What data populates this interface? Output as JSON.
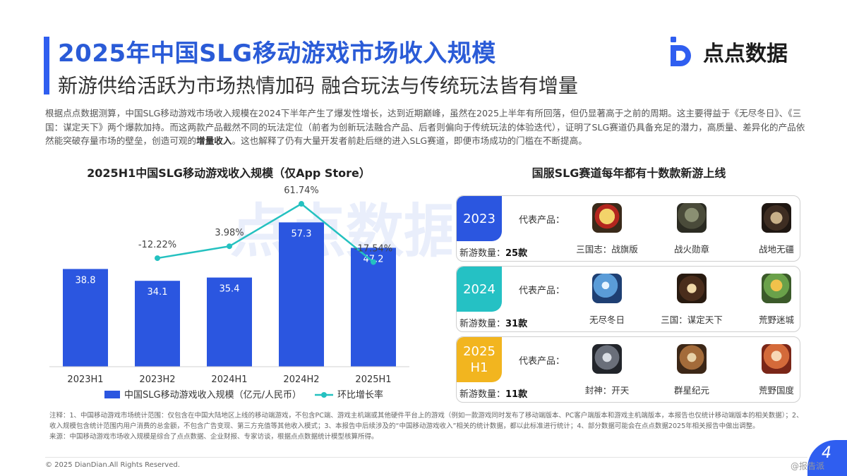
{
  "header": {
    "title": "2025年中国SLG移动游戏市场收入规模",
    "subtitle": "新游供给活跃为市场热情加码 融合玩法与传统玩法皆有增量",
    "logo_text": "点点数据"
  },
  "intro": {
    "part1": "根据点点数据测算，中国SLG移动游戏市场收入规模在2024下半年产生了爆发性增长，达到近期巅峰，虽然在2025上半年有所回落，但仍显著高于之前的周期。这主要得益于《无尽冬日》、《三国：谋定天下》两个爆款加持。而这两款产品截然不同的玩法定位（前者为创新玩法融合产品、后者则偏向于传统玩法的体验迭代），证明了SLG赛道仍具备充足的潜力，高质量、差异化的产品依然能突破存量市场的壁垒，创造可观的",
    "bold": "增量收入",
    "part2": "。这也解释了仍有大量开发者前赴后继的进入SLG赛道，即便市场成功的门槛在不断提高。"
  },
  "chart_data": {
    "type": "bar",
    "title": "2025H1中国SLG移动游戏收入规模（仅App Store）",
    "categories": [
      "2023H1",
      "2023H2",
      "2024H1",
      "2024H2",
      "2025H1"
    ],
    "series": [
      {
        "name": "中国SLG移动游戏收入规模（亿元/人民币）",
        "type": "bar",
        "values": [
          38.8,
          34.1,
          35.4,
          57.3,
          47.2
        ],
        "labels": [
          "38.8",
          "34.1",
          "35.4",
          "57.3",
          "47.2"
        ]
      },
      {
        "name": "环比增长率",
        "type": "line",
        "values": [
          null,
          -12.22,
          3.98,
          61.74,
          -17.54
        ],
        "labels": [
          "",
          "-12.22%",
          "3.98%",
          "61.74%",
          "-17.54%"
        ]
      }
    ],
    "bar_ylim": [
      0,
      70
    ],
    "line_ylim": [
      -160,
      80
    ],
    "legend_position": "bottom",
    "bar_color": "#2b56e0",
    "line_color": "#24c1c0",
    "watermark": "点点数据"
  },
  "panel": {
    "title": "国服SLG赛道每年都有十数款新游上线",
    "rep_label": "代表产品：",
    "count_label": "新游数量：",
    "years": [
      {
        "year": "2023",
        "color": "#2b56e0",
        "count": "25款",
        "games": [
          {
            "name": "三国志：战旗版",
            "icon": "sanguozhi-icon"
          },
          {
            "name": "战火勋章",
            "icon": "soldier-icon"
          },
          {
            "name": "战地无疆",
            "icon": "zhan-icon"
          }
        ]
      },
      {
        "year": "2024",
        "color": "#25c1c4",
        "count": "31款",
        "games": [
          {
            "name": "无尽冬日",
            "icon": "winter-globe-icon"
          },
          {
            "name": "三国：谋定天下",
            "icon": "mou-icon"
          },
          {
            "name": "荒野迷城",
            "icon": "survivor-icon"
          }
        ]
      },
      {
        "year": "2025\nH1",
        "color": "#f2b51f",
        "count": "11款",
        "games": [
          {
            "name": "封神：开天",
            "icon": "dragon-warrior-icon"
          },
          {
            "name": "群星纪元",
            "icon": "mech-icon"
          },
          {
            "name": "荒野国度",
            "icon": "heroine-icon"
          }
        ]
      }
    ]
  },
  "footer": {
    "notes": "注释：1、中国移动游戏市场统计范围：仅包含在中国大陆地区上线的移动端游戏，不包含PC端、游戏主机端或其他硬件平台上的游戏（例如一款游戏同时发布了移动端版本、PC客户端版本和游戏主机端版本，本报告也仅统计移动端版本的相关数据）；2、收入规模包含统计范围内用户消费的总金额，不包含广告变现、第三方充值等其他收入模式；3、本报告中后续涉及的“中国移动游戏收入”相关的统计数据，都以此标准进行统计；4、部分数据可能会在点点数据2025年相关报告中做出调整。",
    "source": "来源：中国移动游戏市场收入规模是综合了点点数据、企业财报、专家访谈，根据点点数据统计模型核算所得。",
    "copyright": "© 2025 DianDian.All Rights Reserved.",
    "page": "4",
    "watermark": "@报告派"
  }
}
